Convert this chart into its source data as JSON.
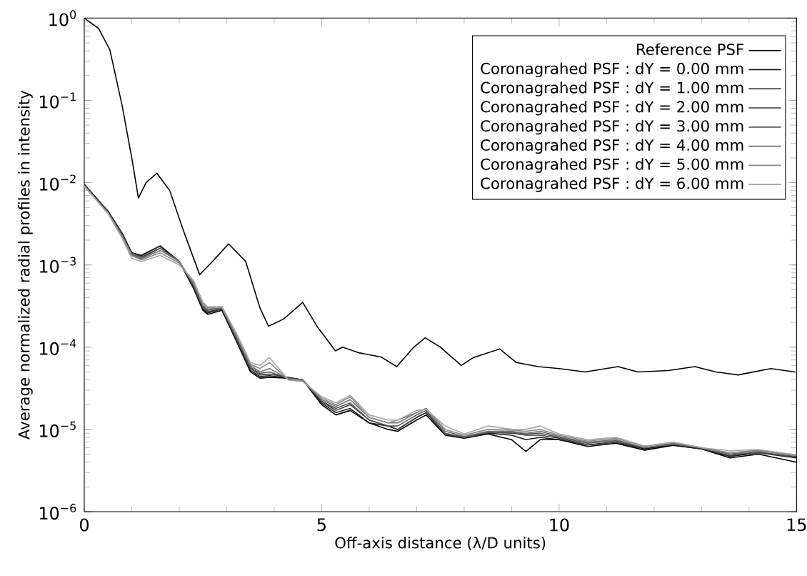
{
  "chart_data": {
    "type": "line",
    "xlabel": "Off-axis distance (λ/D units)",
    "ylabel": "Average normalized radial profiles in intensity",
    "log": "y",
    "xlim": [
      0,
      15
    ],
    "xticks": [
      0,
      5,
      10,
      15
    ],
    "ylim": [
      1e-06,
      1
    ],
    "yticks": [
      {
        "value": 1e-06,
        "label": "10$^{−6}$"
      },
      {
        "value": 1e-05,
        "label": "10$^{−5}$"
      },
      {
        "value": 0.0001,
        "label": "10$^{−4}$"
      },
      {
        "value": 0.001,
        "label": "10$^{−3}$"
      },
      {
        "value": 0.01,
        "label": "10$^{−2}$"
      },
      {
        "value": 0.1,
        "label": "10$^{−1}$"
      },
      {
        "value": 1,
        "label": "10$^{0}$"
      }
    ],
    "legend": "top right",
    "x": [
      0,
      0.5,
      0.8,
      1.0,
      1.2,
      1.6,
      2.0,
      2.3,
      2.5,
      2.6,
      2.9,
      3.2,
      3.5,
      3.7,
      3.9,
      4.3,
      4.6,
      5.0,
      5.3,
      5.6,
      6.0,
      6.4,
      6.6,
      7.0,
      7.2,
      7.6,
      8.0,
      8.5,
      9.0,
      9.3,
      9.6,
      10.0,
      10.6,
      11.2,
      11.8,
      12.4,
      13.0,
      13.6,
      14.2,
      15
    ],
    "series": [
      {
        "name": "Reference PSF",
        "color": "#000000",
        "x": [
          0,
          0.3,
          0.54,
          0.8,
          1.0,
          1.14,
          1.3,
          1.53,
          1.8,
          2.1,
          2.43,
          2.7,
          3.04,
          3.4,
          3.7,
          3.88,
          4.2,
          4.6,
          4.9,
          5.29,
          5.44,
          5.8,
          6.25,
          6.58,
          6.94,
          7.18,
          7.5,
          7.94,
          8.2,
          8.75,
          9.1,
          9.56,
          10.0,
          10.55,
          11.24,
          11.66,
          12.3,
          12.86,
          13.3,
          13.77,
          14.46,
          14.97
        ],
        "values": [
          1,
          0.75,
          0.41,
          0.085,
          0.02,
          0.0065,
          0.01,
          0.013,
          0.008,
          0.0025,
          0.00076,
          0.0011,
          0.0018,
          0.0011,
          0.0003,
          0.00018,
          0.00022,
          0.00035,
          0.00018,
          9e-05,
          0.0001,
          8.5e-05,
          7.6e-05,
          5.8e-05,
          0.0001,
          0.00013,
          0.0001,
          6e-05,
          7.5e-05,
          9.5e-05,
          6.5e-05,
          5.8e-05,
          5.5e-05,
          5e-05,
          5.8e-05,
          5e-05,
          5.2e-05,
          5.8e-05,
          5e-05,
          4.6e-05,
          5.5e-05,
          5e-05
        ]
      },
      {
        "name": "Coronagrahed PSF : dY = 0.00 mm",
        "color": "#000000",
        "values": [
          0.0095,
          0.0045,
          0.0024,
          0.0014,
          0.0013,
          0.0017,
          0.0011,
          0.00052,
          0.00028,
          0.00025,
          0.00028,
          0.00012,
          5e-05,
          4.2e-05,
          4.3e-05,
          4.2e-05,
          4e-05,
          2e-05,
          1.5e-05,
          1.7e-05,
          1.2e-05,
          1e-05,
          9.5e-06,
          1.3e-05,
          1.5e-05,
          8.5e-06,
          7.8e-06,
          8.8e-06,
          7.5e-06,
          5.4e-06,
          7.5e-06,
          7.5e-06,
          6.2e-06,
          6.8e-06,
          5.6e-06,
          6.4e-06,
          5.8e-06,
          4.5e-06,
          5e-06,
          4e-06
        ]
      },
      {
        "name": "Coronagrahed PSF : dY = 1.00 mm",
        "color": "#1c1c1c",
        "values": [
          0.0095,
          0.0045,
          0.0024,
          0.0014,
          0.0013,
          0.0017,
          0.0011,
          0.00053,
          0.00029,
          0.00026,
          0.00029,
          0.00012,
          5.2e-05,
          4.4e-05,
          4.5e-05,
          4.2e-05,
          4e-05,
          2.1e-05,
          1.6e-05,
          1.8e-05,
          1.2e-05,
          1.1e-05,
          1e-05,
          1.4e-05,
          1.6e-05,
          8.8e-06,
          8e-06,
          9e-06,
          8.5e-06,
          7.5e-06,
          8e-06,
          7.5e-06,
          6.5e-06,
          7e-06,
          5.8e-06,
          6.5e-06,
          5.8e-06,
          4.7e-06,
          5.2e-06,
          4.5e-06
        ]
      },
      {
        "name": "Coronagrahed PSF : dY = 2.00 mm",
        "color": "#383838",
        "values": [
          0.0094,
          0.0044,
          0.0023,
          0.0014,
          0.00125,
          0.0016,
          0.0011,
          0.00055,
          0.0003,
          0.00027,
          0.00029,
          0.00013,
          5.5e-05,
          4.6e-05,
          4.7e-05,
          4.3e-05,
          4e-05,
          2.2e-05,
          1.7e-05,
          2e-05,
          1.3e-05,
          1.1e-05,
          1e-05,
          1.4e-05,
          1.6e-05,
          8.8e-06,
          8e-06,
          9.2e-06,
          9e-06,
          8.5e-06,
          8.5e-06,
          7.8e-06,
          6.5e-06,
          7e-06,
          6e-06,
          6.6e-06,
          5.8e-06,
          4.8e-06,
          5.3e-06,
          4.6e-06
        ]
      },
      {
        "name": "Coronagrahed PSF : dY = 3.00 mm",
        "color": "#555555",
        "values": [
          0.0093,
          0.0044,
          0.0023,
          0.00135,
          0.0012,
          0.0016,
          0.0011,
          0.00057,
          0.00031,
          0.00028,
          0.0003,
          0.00013,
          5.7e-05,
          4.8e-05,
          5e-05,
          4.2e-05,
          4e-05,
          2.2e-05,
          1.8e-05,
          2.1e-05,
          1.3e-05,
          1.1e-05,
          1.1e-05,
          1.5e-05,
          1.7e-05,
          9e-06,
          8e-06,
          9.2e-06,
          9.2e-06,
          8.8e-06,
          9e-06,
          8e-06,
          6.8e-06,
          7.3e-06,
          6e-06,
          6.6e-06,
          6e-06,
          5e-06,
          5.2e-06,
          4.7e-06
        ]
      },
      {
        "name": "Coronagrahed PSF : dY = 4.00 mm",
        "color": "#707070",
        "values": [
          0.0092,
          0.0043,
          0.0022,
          0.0013,
          0.00118,
          0.0015,
          0.0011,
          0.0006,
          0.00032,
          0.00029,
          0.0003,
          0.00014,
          6e-05,
          5e-05,
          5.5e-05,
          4.1e-05,
          4e-05,
          2.3e-05,
          1.9e-05,
          2.3e-05,
          1.4e-05,
          1.2e-05,
          1.2e-05,
          1.6e-05,
          1.8e-05,
          9.5e-06,
          8.2e-06,
          9.5e-06,
          9.5e-06,
          9e-06,
          9.5e-06,
          8.2e-06,
          7e-06,
          7.5e-06,
          6e-06,
          6.8e-06,
          6e-06,
          5e-06,
          5.5e-06,
          4.8e-06
        ]
      },
      {
        "name": "Coronagrahed PSF : dY = 5.00 mm",
        "color": "#8a8a8a",
        "values": [
          0.0091,
          0.0042,
          0.0022,
          0.0013,
          0.00115,
          0.0014,
          0.00105,
          0.00062,
          0.00034,
          0.0003,
          0.00031,
          0.00014,
          6.2e-05,
          5.5e-05,
          6.5e-05,
          4e-05,
          3.9e-05,
          2.4e-05,
          2e-05,
          2.5e-05,
          1.4e-05,
          1.2e-05,
          1.3e-05,
          1.6e-05,
          1.8e-05,
          1e-05,
          8.5e-06,
          1e-05,
          9.8e-06,
          9.5e-06,
          1e-05,
          8.5e-06,
          7.2e-06,
          7.8e-06,
          6.2e-06,
          7e-06,
          6e-06,
          5.2e-06,
          5.6e-06,
          4.8e-06
        ]
      },
      {
        "name": "Coronagrahed PSF : dY = 6.00 mm",
        "color": "#a6a6a6",
        "values": [
          0.009,
          0.0042,
          0.0021,
          0.0012,
          0.0011,
          0.0013,
          0.001,
          0.00065,
          0.00035,
          0.00031,
          0.00031,
          0.00015,
          6.5e-05,
          6e-05,
          7.5e-05,
          4e-05,
          3.8e-05,
          2.5e-05,
          2.1e-05,
          2.6e-05,
          1.5e-05,
          1.3e-05,
          1.3e-05,
          1.7e-05,
          1.75e-05,
          1.1e-05,
          8.8e-06,
          1.1e-05,
          1e-05,
          1e-05,
          1.1e-05,
          8.8e-06,
          7.5e-06,
          8e-06,
          6.3e-06,
          7e-06,
          6e-06,
          5.5e-06,
          5.7e-06,
          4.9e-06
        ]
      }
    ]
  }
}
